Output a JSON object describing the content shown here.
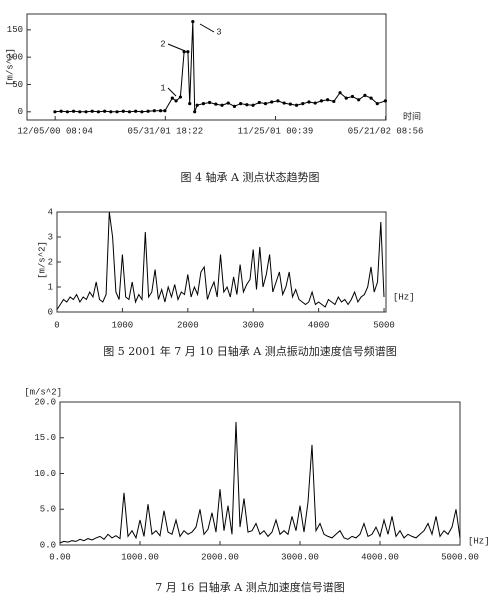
{
  "chart_data": [
    {
      "type": "line",
      "caption": "图 4 轴承 A 测点状态趋势图",
      "ylabel": "[m/s^2]",
      "xlabel": "时间",
      "color": "#000000",
      "markers": true,
      "annotations": [
        "1",
        "2",
        "3"
      ],
      "x": [
        "2000-12-05",
        "2000-12-15",
        "2000-12-25",
        "2001-01-04",
        "2001-01-14",
        "2001-01-24",
        "2001-02-03",
        "2001-02-13",
        "2001-02-23",
        "2001-03-05",
        "2001-03-15",
        "2001-03-25",
        "2001-04-04",
        "2001-04-14",
        "2001-04-24",
        "2001-05-04",
        "2001-05-14",
        "2001-05-24",
        "2001-05-31",
        "2001-06-12",
        "2001-06-18",
        "2001-06-25",
        "2001-07-01",
        "2001-07-07",
        "2001-07-10",
        "2001-07-15",
        "2001-07-18",
        "2001-07-22",
        "2001-08-01",
        "2001-08-11",
        "2001-08-21",
        "2001-08-31",
        "2001-09-10",
        "2001-09-20",
        "2001-09-30",
        "2001-10-10",
        "2001-10-20",
        "2001-10-30",
        "2001-11-09",
        "2001-11-19",
        "2001-11-29",
        "2001-12-09",
        "2001-12-19",
        "2001-12-29",
        "2002-01-08",
        "2002-01-18",
        "2002-01-28",
        "2002-02-07",
        "2002-02-17",
        "2002-02-27",
        "2002-03-09",
        "2002-03-19",
        "2002-03-29",
        "2002-04-08",
        "2002-04-18",
        "2002-04-28",
        "2002-05-08",
        "2002-05-21"
      ],
      "values": [
        0,
        1,
        0,
        1,
        0,
        0,
        1,
        0,
        1,
        0,
        0,
        1,
        0,
        1,
        0,
        1,
        2,
        2,
        2,
        25,
        20,
        27,
        110,
        110,
        15,
        165,
        0,
        12,
        15,
        17,
        14,
        12,
        16,
        10,
        15,
        13,
        12,
        17,
        15,
        18,
        20,
        16,
        14,
        12,
        15,
        18,
        16,
        20,
        22,
        19,
        35,
        25,
        28,
        22,
        30,
        25,
        15,
        20
      ],
      "xlim": [
        "2000-10-21",
        "2002-05-22"
      ],
      "ylim": [
        -15,
        179
      ],
      "xticks": [
        {
          "value": "2000-12-05T08:04",
          "label": "12/05/00 08:04"
        },
        {
          "value": "2001-05-31T18:22",
          "label": "05/31/01 18:22"
        },
        {
          "value": "2001-11-25T00:39",
          "label": "11/25/01 00:39"
        },
        {
          "value": "2002-05-21T08:56",
          "label": "05/21/02 08:56"
        }
      ],
      "yticks": [
        0,
        50,
        100,
        150
      ]
    },
    {
      "type": "line",
      "caption": "图 5 2001 年 7 月 10 日轴承 A 测点振动加速度信号频谱图",
      "ylabel": "[m/s^2]",
      "xlabel": "[Hz]",
      "color": "#000000",
      "x": [
        0,
        50,
        100,
        150,
        200,
        250,
        300,
        350,
        400,
        450,
        500,
        550,
        600,
        650,
        700,
        750,
        800,
        850,
        900,
        950,
        1000,
        1050,
        1100,
        1150,
        1200,
        1250,
        1300,
        1350,
        1400,
        1450,
        1500,
        1550,
        1600,
        1650,
        1700,
        1750,
        1800,
        1850,
        1900,
        1950,
        2000,
        2050,
        2100,
        2150,
        2200,
        2250,
        2300,
        2350,
        2400,
        2450,
        2500,
        2550,
        2600,
        2650,
        2700,
        2750,
        2800,
        2850,
        2900,
        2950,
        3000,
        3050,
        3100,
        3150,
        3200,
        3250,
        3300,
        3350,
        3400,
        3450,
        3500,
        3550,
        3600,
        3650,
        3700,
        3750,
        3800,
        3850,
        3900,
        3950,
        4000,
        4050,
        4100,
        4150,
        4200,
        4250,
        4300,
        4350,
        4400,
        4450,
        4500,
        4550,
        4600,
        4650,
        4700,
        4750,
        4800,
        4850,
        4900,
        4950,
        5000
      ],
      "values": [
        0.1,
        0.3,
        0.5,
        0.4,
        0.6,
        0.5,
        0.7,
        0.4,
        0.6,
        0.5,
        0.8,
        0.6,
        1.2,
        0.5,
        0.4,
        0.7,
        4.0,
        3.0,
        0.8,
        0.5,
        2.3,
        0.6,
        0.5,
        1.2,
        0.4,
        0.7,
        0.5,
        3.2,
        0.6,
        0.8,
        1.7,
        0.5,
        0.9,
        0.4,
        1.0,
        0.6,
        1.1,
        0.5,
        0.8,
        0.7,
        1.5,
        0.6,
        1.0,
        0.7,
        1.6,
        1.8,
        0.5,
        0.9,
        1.2,
        0.6,
        2.3,
        0.8,
        1.0,
        0.6,
        1.4,
        0.7,
        1.9,
        0.8,
        1.1,
        1.3,
        2.5,
        0.9,
        2.6,
        1.0,
        1.5,
        2.3,
        0.8,
        1.2,
        1.6,
        0.7,
        1.0,
        1.6,
        0.6,
        0.9,
        0.5,
        0.4,
        0.3,
        0.4,
        0.8,
        0.3,
        0.4,
        0.3,
        0.2,
        0.5,
        0.4,
        0.3,
        0.6,
        0.4,
        0.5,
        0.3,
        0.5,
        0.8,
        0.4,
        0.6,
        0.7,
        1.0,
        1.8,
        0.8,
        1.2,
        3.6,
        0.6
      ],
      "xlim": [
        0,
        5030
      ],
      "ylim": [
        0,
        4
      ],
      "xticks": [
        0,
        1000,
        2000,
        3000,
        4000,
        5000
      ],
      "yticks": [
        0,
        1,
        2,
        3,
        4
      ]
    },
    {
      "type": "line",
      "caption": "7 月 16 日轴承 A 测点加速度信号谱图",
      "ylabel": "[m/s^2]",
      "xlabel": "[Hz]",
      "color": "#000000",
      "x": [
        0,
        50,
        100,
        150,
        200,
        250,
        300,
        350,
        400,
        450,
        500,
        550,
        600,
        650,
        700,
        750,
        800,
        850,
        900,
        950,
        1000,
        1050,
        1100,
        1150,
        1200,
        1250,
        1300,
        1350,
        1400,
        1450,
        1500,
        1550,
        1600,
        1650,
        1700,
        1750,
        1800,
        1850,
        1900,
        1950,
        2000,
        2050,
        2100,
        2150,
        2200,
        2250,
        2300,
        2350,
        2400,
        2450,
        2500,
        2550,
        2600,
        2650,
        2700,
        2750,
        2800,
        2850,
        2900,
        2950,
        3000,
        3050,
        3100,
        3150,
        3200,
        3250,
        3300,
        3350,
        3400,
        3450,
        3500,
        3550,
        3600,
        3650,
        3700,
        3750,
        3800,
        3850,
        3900,
        3950,
        4000,
        4050,
        4100,
        4150,
        4200,
        4250,
        4300,
        4350,
        4400,
        4450,
        4500,
        4550,
        4600,
        4650,
        4700,
        4750,
        4800,
        4850,
        4900,
        4950,
        5000
      ],
      "values": [
        0.3,
        0.5,
        0.4,
        0.6,
        0.5,
        0.8,
        0.6,
        0.9,
        0.7,
        1.0,
        1.2,
        0.8,
        1.5,
        1.0,
        1.3,
        0.9,
        7.3,
        1.2,
        2.0,
        1.0,
        3.5,
        1.2,
        5.7,
        1.5,
        2.0,
        1.3,
        4.8,
        1.8,
        1.5,
        3.5,
        1.2,
        2.0,
        1.5,
        1.8,
        2.5,
        5.0,
        1.5,
        2.2,
        4.5,
        1.8,
        7.8,
        2.0,
        5.5,
        1.5,
        17.2,
        2.5,
        6.5,
        1.8,
        2.0,
        3.0,
        1.5,
        2.0,
        1.2,
        1.8,
        3.5,
        1.5,
        2.0,
        1.5,
        4.0,
        2.0,
        5.5,
        1.8,
        6.0,
        14.0,
        2.0,
        3.0,
        1.5,
        1.2,
        1.0,
        1.5,
        2.0,
        1.0,
        0.8,
        1.2,
        1.0,
        1.5,
        3.0,
        1.2,
        1.5,
        2.5,
        1.2,
        3.5,
        1.5,
        4.0,
        1.2,
        2.0,
        1.0,
        1.5,
        1.2,
        1.0,
        1.5,
        2.0,
        3.0,
        1.5,
        4.0,
        1.2,
        2.0,
        1.5,
        2.5,
        5.0,
        1.0
      ],
      "xlim": [
        0,
        5000
      ],
      "ylim": [
        0,
        20
      ],
      "xticks": [
        {
          "value": 0,
          "label": "0.00"
        },
        {
          "value": 1000,
          "label": "1000.00"
        },
        {
          "value": 2000,
          "label": "2000.00"
        },
        {
          "value": 3000,
          "label": "3000.00"
        },
        {
          "value": 4000,
          "label": "4000.00"
        },
        {
          "value": 5000,
          "label": "5000.00"
        }
      ],
      "yticks": [
        {
          "value": 0,
          "label": "0.0"
        },
        {
          "value": 5,
          "label": "5.0"
        },
        {
          "value": 10,
          "label": "10.0"
        },
        {
          "value": 15,
          "label": "15.0"
        },
        {
          "value": 20,
          "label": "20.0"
        }
      ]
    }
  ]
}
